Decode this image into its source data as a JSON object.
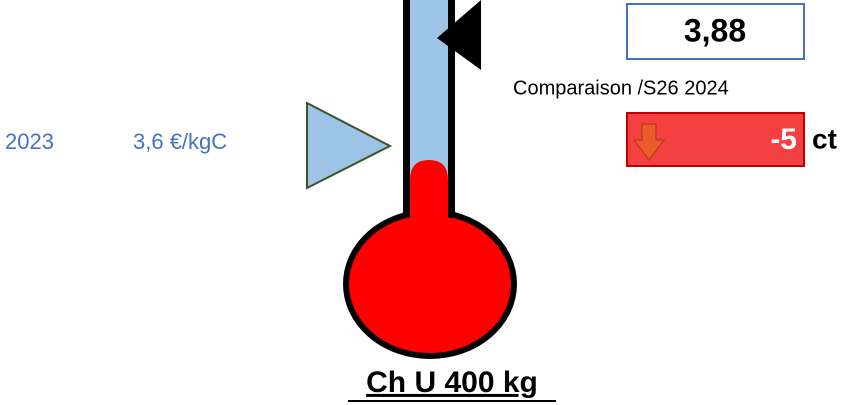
{
  "reference": {
    "year": "2023",
    "price": "3,6 €/kgC"
  },
  "current": {
    "value": "3,88"
  },
  "comparison": {
    "label": "Comparaison /S26 2024",
    "change": "-5",
    "unit": "ct"
  },
  "title": "Ch U 400 kg"
}
